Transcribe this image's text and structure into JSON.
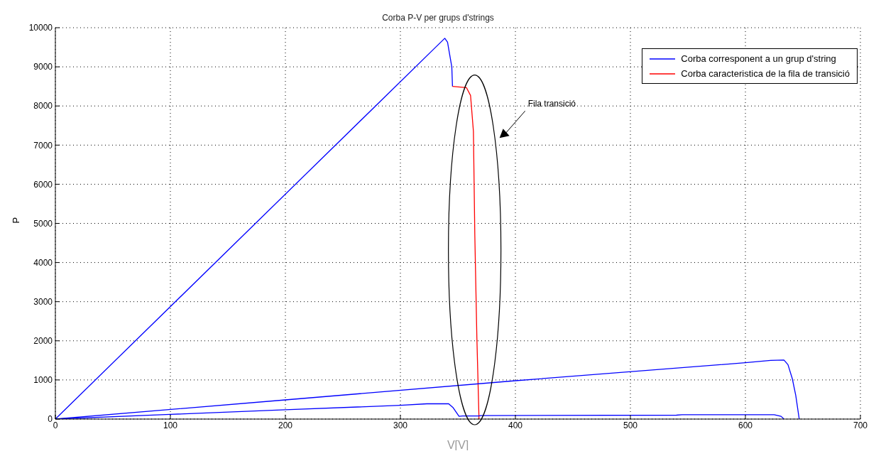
{
  "chart_data": {
    "type": "line",
    "title": "Corba P-V per grups d'strings",
    "xlabel": "V[V]",
    "ylabel": "P",
    "series": [
      {
        "name": "Corba corresponent a un grup d'string",
        "color": "#0000ff",
        "x": [
          0,
          338.6,
          341,
          342.8,
          344.7,
          345.3
        ],
        "values": [
          0,
          9730,
          9630,
          9320,
          9000,
          8500
        ]
      },
      {
        "name": "Corba caracteristica de la fila de transició",
        "color": "#ff0000",
        "x": [
          345.3,
          357.4,
          361,
          363.5,
          364.7,
          366.5,
          368.3,
          368.3
        ],
        "values": [
          8500,
          8470,
          8270,
          7350,
          4720,
          2080,
          70,
          0
        ]
      },
      {
        "color": "#0000ff",
        "x": [
          0,
          200,
          400,
          600,
          622,
          633.5,
          637,
          640.8,
          643.8,
          646.8
        ],
        "values": [
          0,
          490,
          980,
          1440,
          1500,
          1510,
          1390,
          1030,
          600,
          0
        ]
      },
      {
        "color": "#0000ff",
        "x": [
          0,
          100,
          200,
          300,
          323,
          342,
          345.9,
          351,
          354,
          368,
          370,
          540,
          545,
          625,
          631,
          633.5
        ],
        "values": [
          0,
          120,
          240,
          350,
          390,
          390,
          290,
          70,
          80,
          80,
          90,
          100,
          110,
          110,
          70,
          0
        ]
      }
    ],
    "annotations": [
      "Fila transició"
    ],
    "xlim": [
      0,
      700
    ],
    "xticks": [
      0,
      100,
      200,
      300,
      400,
      500,
      600,
      700
    ],
    "ylim": [
      0,
      10000
    ],
    "yticks": [
      0,
      1000,
      2000,
      3000,
      4000,
      5000,
      6000,
      7000,
      8000,
      9000,
      10000
    ],
    "grid": true,
    "legend": "top right",
    "marker": "none",
    "line_style": "solid"
  }
}
